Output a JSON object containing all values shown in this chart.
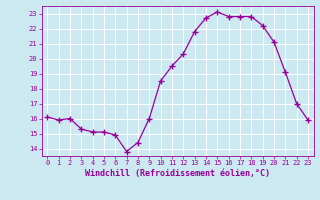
{
  "x": [
    0,
    1,
    2,
    3,
    4,
    5,
    6,
    7,
    8,
    9,
    10,
    11,
    12,
    13,
    14,
    15,
    16,
    17,
    18,
    19,
    20,
    21,
    22,
    23
  ],
  "y": [
    16.1,
    15.9,
    16.0,
    15.3,
    15.1,
    15.1,
    14.9,
    13.8,
    14.4,
    16.0,
    18.5,
    19.5,
    20.3,
    21.8,
    22.7,
    23.1,
    22.8,
    22.8,
    22.8,
    22.2,
    21.1,
    19.1,
    17.0,
    15.9
  ],
  "ylim": [
    13.5,
    23.5
  ],
  "yticks": [
    14,
    15,
    16,
    17,
    18,
    19,
    20,
    21,
    22,
    23
  ],
  "xticks": [
    0,
    1,
    2,
    3,
    4,
    5,
    6,
    7,
    8,
    9,
    10,
    11,
    12,
    13,
    14,
    15,
    16,
    17,
    18,
    19,
    20,
    21,
    22,
    23
  ],
  "xlabel": "Windchill (Refroidissement éolien,°C)",
  "line_color": "#990099",
  "marker_color": "#990099",
  "bg_color": "#cce8f0",
  "grid_color": "#ffffff",
  "tick_color": "#990099",
  "label_color": "#990099"
}
